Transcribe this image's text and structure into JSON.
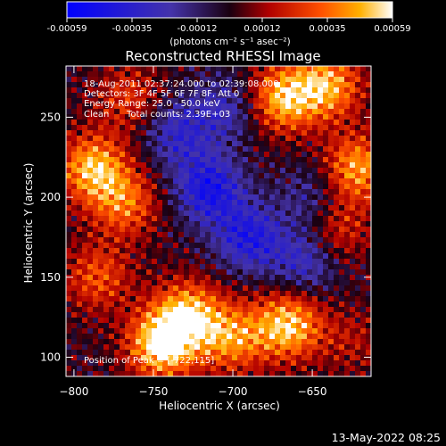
{
  "chart_data": {
    "type": "heatmap",
    "title": "Reconstructed RHESSI Image",
    "xlabel": "Heliocentric X (arcsec)",
    "ylabel": "Heliocentric Y (arcsec)",
    "xlim": [
      -805,
      -613
    ],
    "ylim": [
      88,
      282
    ],
    "xticks": [
      -800,
      -750,
      -700,
      -650
    ],
    "yticks": [
      100,
      150,
      200,
      250
    ],
    "colorbar": {
      "ticks": [
        "-0.00059",
        "-0.00035",
        "-0.00012",
        "0.00012",
        "0.00035",
        "0.00059"
      ],
      "range": [
        -0.00059,
        0.00059
      ],
      "unit_label": "(photons cm⁻² s⁻¹ asec⁻²)"
    },
    "annotations": [
      "18-Aug-2011 02:37:24.000 to 02:39:08.000",
      "Detectors: 3F 4F 5F 6F 7F 8F, Att 0",
      "Energy Range: 25.0 - 50.0 keV",
      "Clean",
      "Total counts: 2.39E+03"
    ],
    "peak_label": "Position of Peak = [-722,115]",
    "hotspots": [
      {
        "x": -745,
        "y": 108,
        "amp": 0.00059
      },
      {
        "x": -728,
        "y": 126,
        "amp": 0.0005
      },
      {
        "x": -700,
        "y": 112,
        "amp": 0.0004
      },
      {
        "x": -665,
        "y": 120,
        "amp": 0.00053
      },
      {
        "x": -788,
        "y": 218,
        "amp": 0.0005
      },
      {
        "x": -768,
        "y": 196,
        "amp": 0.00035
      },
      {
        "x": -668,
        "y": 262,
        "amp": 0.0005
      },
      {
        "x": -640,
        "y": 270,
        "amp": 0.00045
      },
      {
        "x": -622,
        "y": 218,
        "amp": 0.00045
      },
      {
        "x": -635,
        "y": 180,
        "amp": 0.00025
      },
      {
        "x": -785,
        "y": 150,
        "amp": 0.0003
      },
      {
        "x": -765,
        "y": 262,
        "amp": 0.00025
      },
      {
        "x": -625,
        "y": 110,
        "amp": 0.00015
      }
    ],
    "coldspots": [
      {
        "x": -715,
        "y": 205,
        "amp": -0.00045
      },
      {
        "x": -690,
        "y": 175,
        "amp": -0.0004
      },
      {
        "x": -735,
        "y": 240,
        "amp": -0.0003
      },
      {
        "x": -655,
        "y": 160,
        "amp": -0.0003
      },
      {
        "x": -705,
        "y": 255,
        "amp": -0.00025
      },
      {
        "x": -650,
        "y": 200,
        "amp": -0.0002
      }
    ]
  },
  "footer": {
    "date": "13-May-2022 08:25"
  }
}
